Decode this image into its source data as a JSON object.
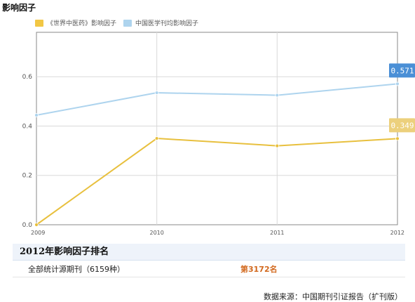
{
  "title": "影响因子",
  "legend": [
    {
      "label": "《世界中医药》影响因子",
      "color": "#f2c744"
    },
    {
      "label": "中国医学刊均影响因子",
      "color": "#aed4ee"
    }
  ],
  "chart_data": {
    "type": "line",
    "x": [
      "2009",
      "2010",
      "2011",
      "2012"
    ],
    "series": [
      {
        "name": "中国医学刊均影响因子",
        "color": "#aed4ee",
        "values": [
          0.444,
          0.535,
          0.525,
          0.571
        ]
      },
      {
        "name": "《世界中医药》影响因子",
        "color": "#e8c03e",
        "values": [
          0.0,
          0.35,
          0.32,
          0.349
        ]
      }
    ],
    "yticks": [
      "0.0",
      "0.2",
      "0.4",
      "0.6"
    ],
    "ylim": [
      0,
      0.78
    ],
    "grid": true,
    "end_labels": [
      {
        "text": "0.571",
        "color": "#4a8fd6"
      },
      {
        "text": "0.349",
        "color": "#ecd07c"
      }
    ]
  },
  "ranking": {
    "header": "2012年影响因子排名",
    "row_label": "全部统计源期刊（6159种）",
    "row_value": "第3172名"
  },
  "source": "数据来源：中国期刊引证报告（扩刊版）"
}
